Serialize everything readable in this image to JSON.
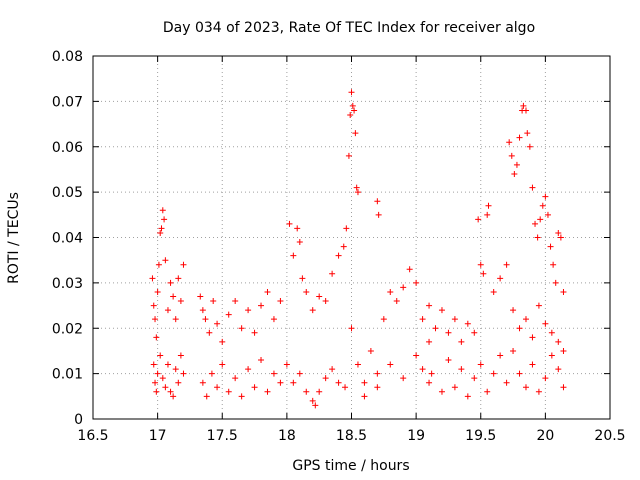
{
  "chart_data": {
    "type": "scatter",
    "title": "Day 034 of 2023, Rate Of TEC Index for receiver algo",
    "xlabel": "GPS time / hours",
    "ylabel": "ROTI / TECUs",
    "xlim": [
      16.5,
      20.5
    ],
    "ylim": [
      0,
      0.08
    ],
    "xticks": [
      "16.5",
      "17",
      "17.5",
      "18",
      "18.5",
      "19",
      "19.5",
      "20",
      "20.5"
    ],
    "yticks": [
      "0",
      "0.01",
      "0.02",
      "0.03",
      "0.04",
      "0.05",
      "0.06",
      "0.07",
      "0.08"
    ],
    "grid": true,
    "marker": "plus",
    "color": "#ff0000",
    "series": [
      {
        "points": [
          [
            16.96,
            0.031
          ],
          [
            16.97,
            0.025
          ],
          [
            16.98,
            0.022
          ],
          [
            16.99,
            0.018
          ],
          [
            17.0,
            0.028
          ],
          [
            17.01,
            0.034
          ],
          [
            17.02,
            0.041
          ],
          [
            17.03,
            0.042
          ],
          [
            17.04,
            0.046
          ],
          [
            17.05,
            0.044
          ],
          [
            17.06,
            0.035
          ],
          [
            17.08,
            0.024
          ],
          [
            17.1,
            0.03
          ],
          [
            17.12,
            0.027
          ],
          [
            17.14,
            0.022
          ],
          [
            17.16,
            0.031
          ],
          [
            17.18,
            0.026
          ],
          [
            17.2,
            0.034
          ],
          [
            16.97,
            0.012
          ],
          [
            16.98,
            0.008
          ],
          [
            16.99,
            0.006
          ],
          [
            17.0,
            0.01
          ],
          [
            17.02,
            0.014
          ],
          [
            17.04,
            0.009
          ],
          [
            17.06,
            0.007
          ],
          [
            17.08,
            0.012
          ],
          [
            17.1,
            0.006
          ],
          [
            17.12,
            0.005
          ],
          [
            17.14,
            0.011
          ],
          [
            17.16,
            0.008
          ],
          [
            17.18,
            0.014
          ],
          [
            17.2,
            0.01
          ],
          [
            17.33,
            0.027
          ],
          [
            17.35,
            0.024
          ],
          [
            17.37,
            0.022
          ],
          [
            17.4,
            0.019
          ],
          [
            17.43,
            0.026
          ],
          [
            17.46,
            0.021
          ],
          [
            17.5,
            0.017
          ],
          [
            17.55,
            0.023
          ],
          [
            17.6,
            0.026
          ],
          [
            17.65,
            0.02
          ],
          [
            17.7,
            0.024
          ],
          [
            17.75,
            0.019
          ],
          [
            17.8,
            0.025
          ],
          [
            17.85,
            0.028
          ],
          [
            17.9,
            0.022
          ],
          [
            17.95,
            0.026
          ],
          [
            17.35,
            0.008
          ],
          [
            17.38,
            0.005
          ],
          [
            17.42,
            0.01
          ],
          [
            17.46,
            0.007
          ],
          [
            17.5,
            0.012
          ],
          [
            17.55,
            0.006
          ],
          [
            17.6,
            0.009
          ],
          [
            17.65,
            0.005
          ],
          [
            17.7,
            0.011
          ],
          [
            17.75,
            0.007
          ],
          [
            17.8,
            0.013
          ],
          [
            17.85,
            0.006
          ],
          [
            17.9,
            0.01
          ],
          [
            17.95,
            0.008
          ],
          [
            18.02,
            0.043
          ],
          [
            18.05,
            0.036
          ],
          [
            18.08,
            0.042
          ],
          [
            18.1,
            0.039
          ],
          [
            18.12,
            0.031
          ],
          [
            18.15,
            0.028
          ],
          [
            18.2,
            0.024
          ],
          [
            18.25,
            0.027
          ],
          [
            18.3,
            0.026
          ],
          [
            18.35,
            0.032
          ],
          [
            18.4,
            0.036
          ],
          [
            18.44,
            0.038
          ],
          [
            18.46,
            0.042
          ],
          [
            18.0,
            0.012
          ],
          [
            18.05,
            0.008
          ],
          [
            18.1,
            0.01
          ],
          [
            18.15,
            0.006
          ],
          [
            18.2,
            0.004
          ],
          [
            18.22,
            0.003
          ],
          [
            18.25,
            0.006
          ],
          [
            18.3,
            0.009
          ],
          [
            18.35,
            0.011
          ],
          [
            18.4,
            0.008
          ],
          [
            18.45,
            0.007
          ],
          [
            18.48,
            0.058
          ],
          [
            18.49,
            0.067
          ],
          [
            18.5,
            0.072
          ],
          [
            18.51,
            0.069
          ],
          [
            18.52,
            0.068
          ],
          [
            18.53,
            0.063
          ],
          [
            18.54,
            0.051
          ],
          [
            18.55,
            0.05
          ],
          [
            18.7,
            0.048
          ],
          [
            18.71,
            0.045
          ],
          [
            18.5,
            0.02
          ],
          [
            18.55,
            0.012
          ],
          [
            18.6,
            0.008
          ],
          [
            18.65,
            0.015
          ],
          [
            18.7,
            0.01
          ],
          [
            18.75,
            0.022
          ],
          [
            18.8,
            0.028
          ],
          [
            18.85,
            0.026
          ],
          [
            18.9,
            0.029
          ],
          [
            18.95,
            0.033
          ],
          [
            19.0,
            0.03
          ],
          [
            19.05,
            0.022
          ],
          [
            19.1,
            0.025
          ],
          [
            18.6,
            0.005
          ],
          [
            18.7,
            0.007
          ],
          [
            18.8,
            0.012
          ],
          [
            18.9,
            0.009
          ],
          [
            19.0,
            0.014
          ],
          [
            19.05,
            0.011
          ],
          [
            19.1,
            0.008
          ],
          [
            19.1,
            0.017
          ],
          [
            19.15,
            0.02
          ],
          [
            19.2,
            0.024
          ],
          [
            19.25,
            0.019
          ],
          [
            19.3,
            0.022
          ],
          [
            19.35,
            0.017
          ],
          [
            19.4,
            0.021
          ],
          [
            19.45,
            0.019
          ],
          [
            19.48,
            0.044
          ],
          [
            19.5,
            0.034
          ],
          [
            19.52,
            0.032
          ],
          [
            19.55,
            0.045
          ],
          [
            19.56,
            0.047
          ],
          [
            19.6,
            0.028
          ],
          [
            19.65,
            0.031
          ],
          [
            19.7,
            0.034
          ],
          [
            19.12,
            0.01
          ],
          [
            19.2,
            0.006
          ],
          [
            19.25,
            0.013
          ],
          [
            19.3,
            0.007
          ],
          [
            19.35,
            0.011
          ],
          [
            19.4,
            0.005
          ],
          [
            19.45,
            0.009
          ],
          [
            19.5,
            0.012
          ],
          [
            19.55,
            0.006
          ],
          [
            19.6,
            0.01
          ],
          [
            19.65,
            0.014
          ],
          [
            19.7,
            0.008
          ],
          [
            19.72,
            0.061
          ],
          [
            19.74,
            0.058
          ],
          [
            19.76,
            0.054
          ],
          [
            19.78,
            0.056
          ],
          [
            19.8,
            0.062
          ],
          [
            19.82,
            0.068
          ],
          [
            19.83,
            0.069
          ],
          [
            19.85,
            0.068
          ],
          [
            19.86,
            0.063
          ],
          [
            19.88,
            0.06
          ],
          [
            19.9,
            0.051
          ],
          [
            19.92,
            0.043
          ],
          [
            19.94,
            0.04
          ],
          [
            19.96,
            0.044
          ],
          [
            19.98,
            0.047
          ],
          [
            20.0,
            0.049
          ],
          [
            20.02,
            0.045
          ],
          [
            20.04,
            0.038
          ],
          [
            20.06,
            0.034
          ],
          [
            20.08,
            0.03
          ],
          [
            20.1,
            0.041
          ],
          [
            20.12,
            0.04
          ],
          [
            20.14,
            0.028
          ],
          [
            19.75,
            0.015
          ],
          [
            19.8,
            0.01
          ],
          [
            19.85,
            0.007
          ],
          [
            19.9,
            0.012
          ],
          [
            19.95,
            0.006
          ],
          [
            20.0,
            0.009
          ],
          [
            20.05,
            0.014
          ],
          [
            20.1,
            0.011
          ],
          [
            20.14,
            0.007
          ],
          [
            19.75,
            0.024
          ],
          [
            19.8,
            0.02
          ],
          [
            19.85,
            0.022
          ],
          [
            19.9,
            0.018
          ],
          [
            19.95,
            0.025
          ],
          [
            20.0,
            0.021
          ],
          [
            20.05,
            0.019
          ],
          [
            20.1,
            0.017
          ],
          [
            20.14,
            0.015
          ]
        ]
      }
    ]
  }
}
